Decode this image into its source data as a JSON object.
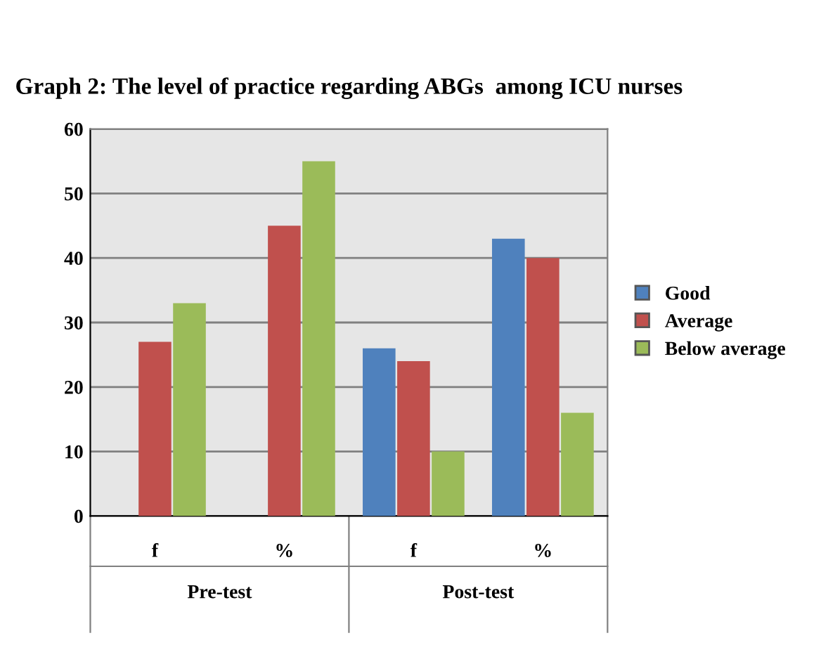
{
  "chart_data": {
    "type": "bar",
    "title": "Graph 2: The level of practice regarding ABGs  among ICU nurses",
    "categories": [
      "f",
      "%",
      "f",
      "%"
    ],
    "annotations": [
      "Pre-test",
      "Post-test"
    ],
    "series": [
      {
        "name": "Good",
        "color": "#4f81bd",
        "values": [
          0,
          0,
          26,
          43
        ]
      },
      {
        "name": "Average",
        "color": "#c0504d",
        "values": [
          27,
          45,
          24,
          40
        ]
      },
      {
        "name": "Below average",
        "color": "#9bbb59",
        "values": [
          33,
          55,
          10,
          16
        ]
      }
    ],
    "ylim": [
      0,
      60
    ],
    "yticks": [
      0,
      10,
      20,
      30,
      40,
      50,
      60
    ],
    "grid": "y",
    "legend": "right"
  }
}
